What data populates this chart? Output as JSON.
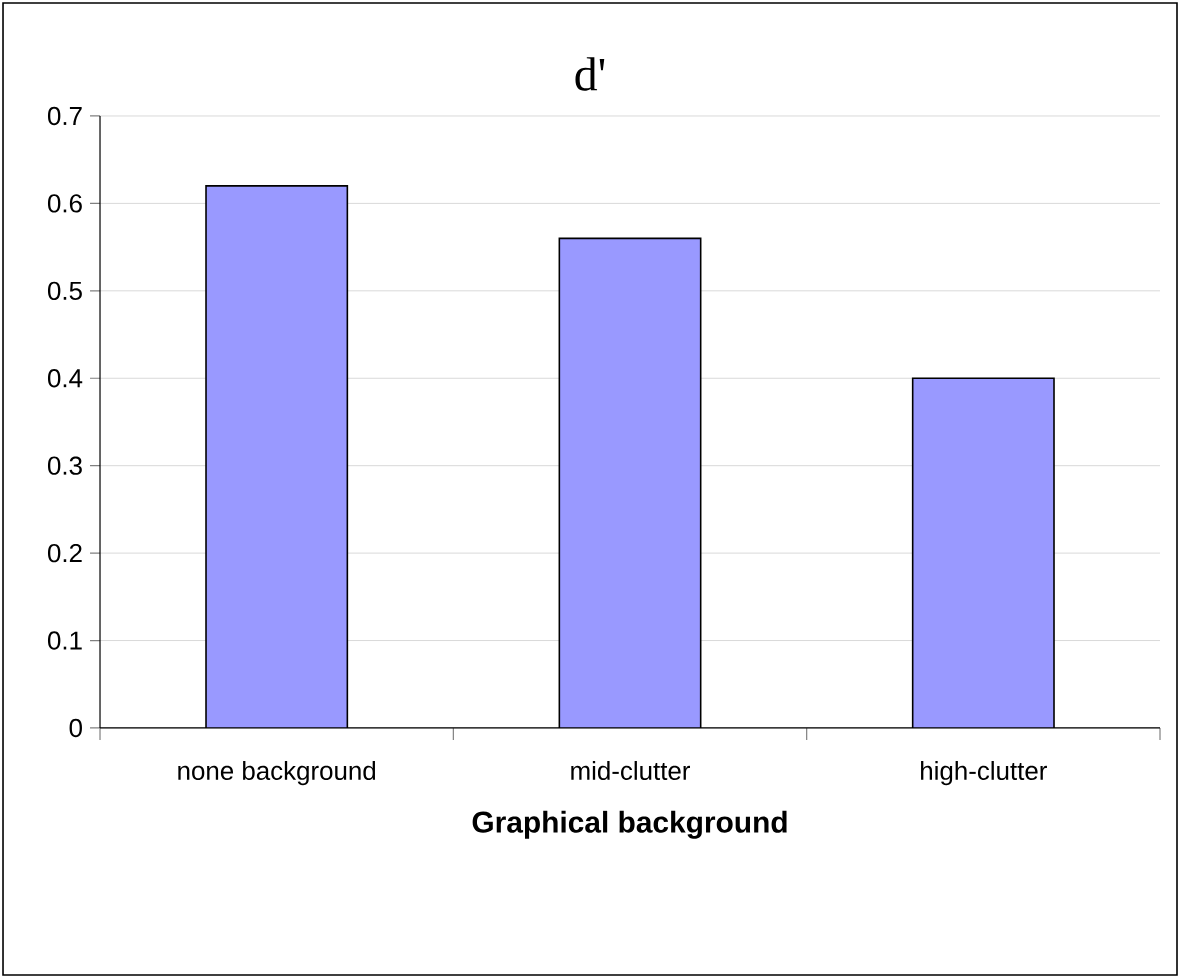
{
  "chart_data": {
    "type": "bar",
    "title": "d'",
    "xlabel": "Graphical background",
    "categories": [
      "none background",
      "mid-clutter",
      "high-clutter"
    ],
    "values": [
      0.62,
      0.56,
      0.4
    ],
    "color": "#9999ff",
    "ylim": [
      0,
      0.7
    ],
    "yticks": [
      0,
      0.1,
      0.2,
      0.3,
      0.4,
      0.5,
      0.6,
      0.7
    ],
    "grid": "y"
  }
}
